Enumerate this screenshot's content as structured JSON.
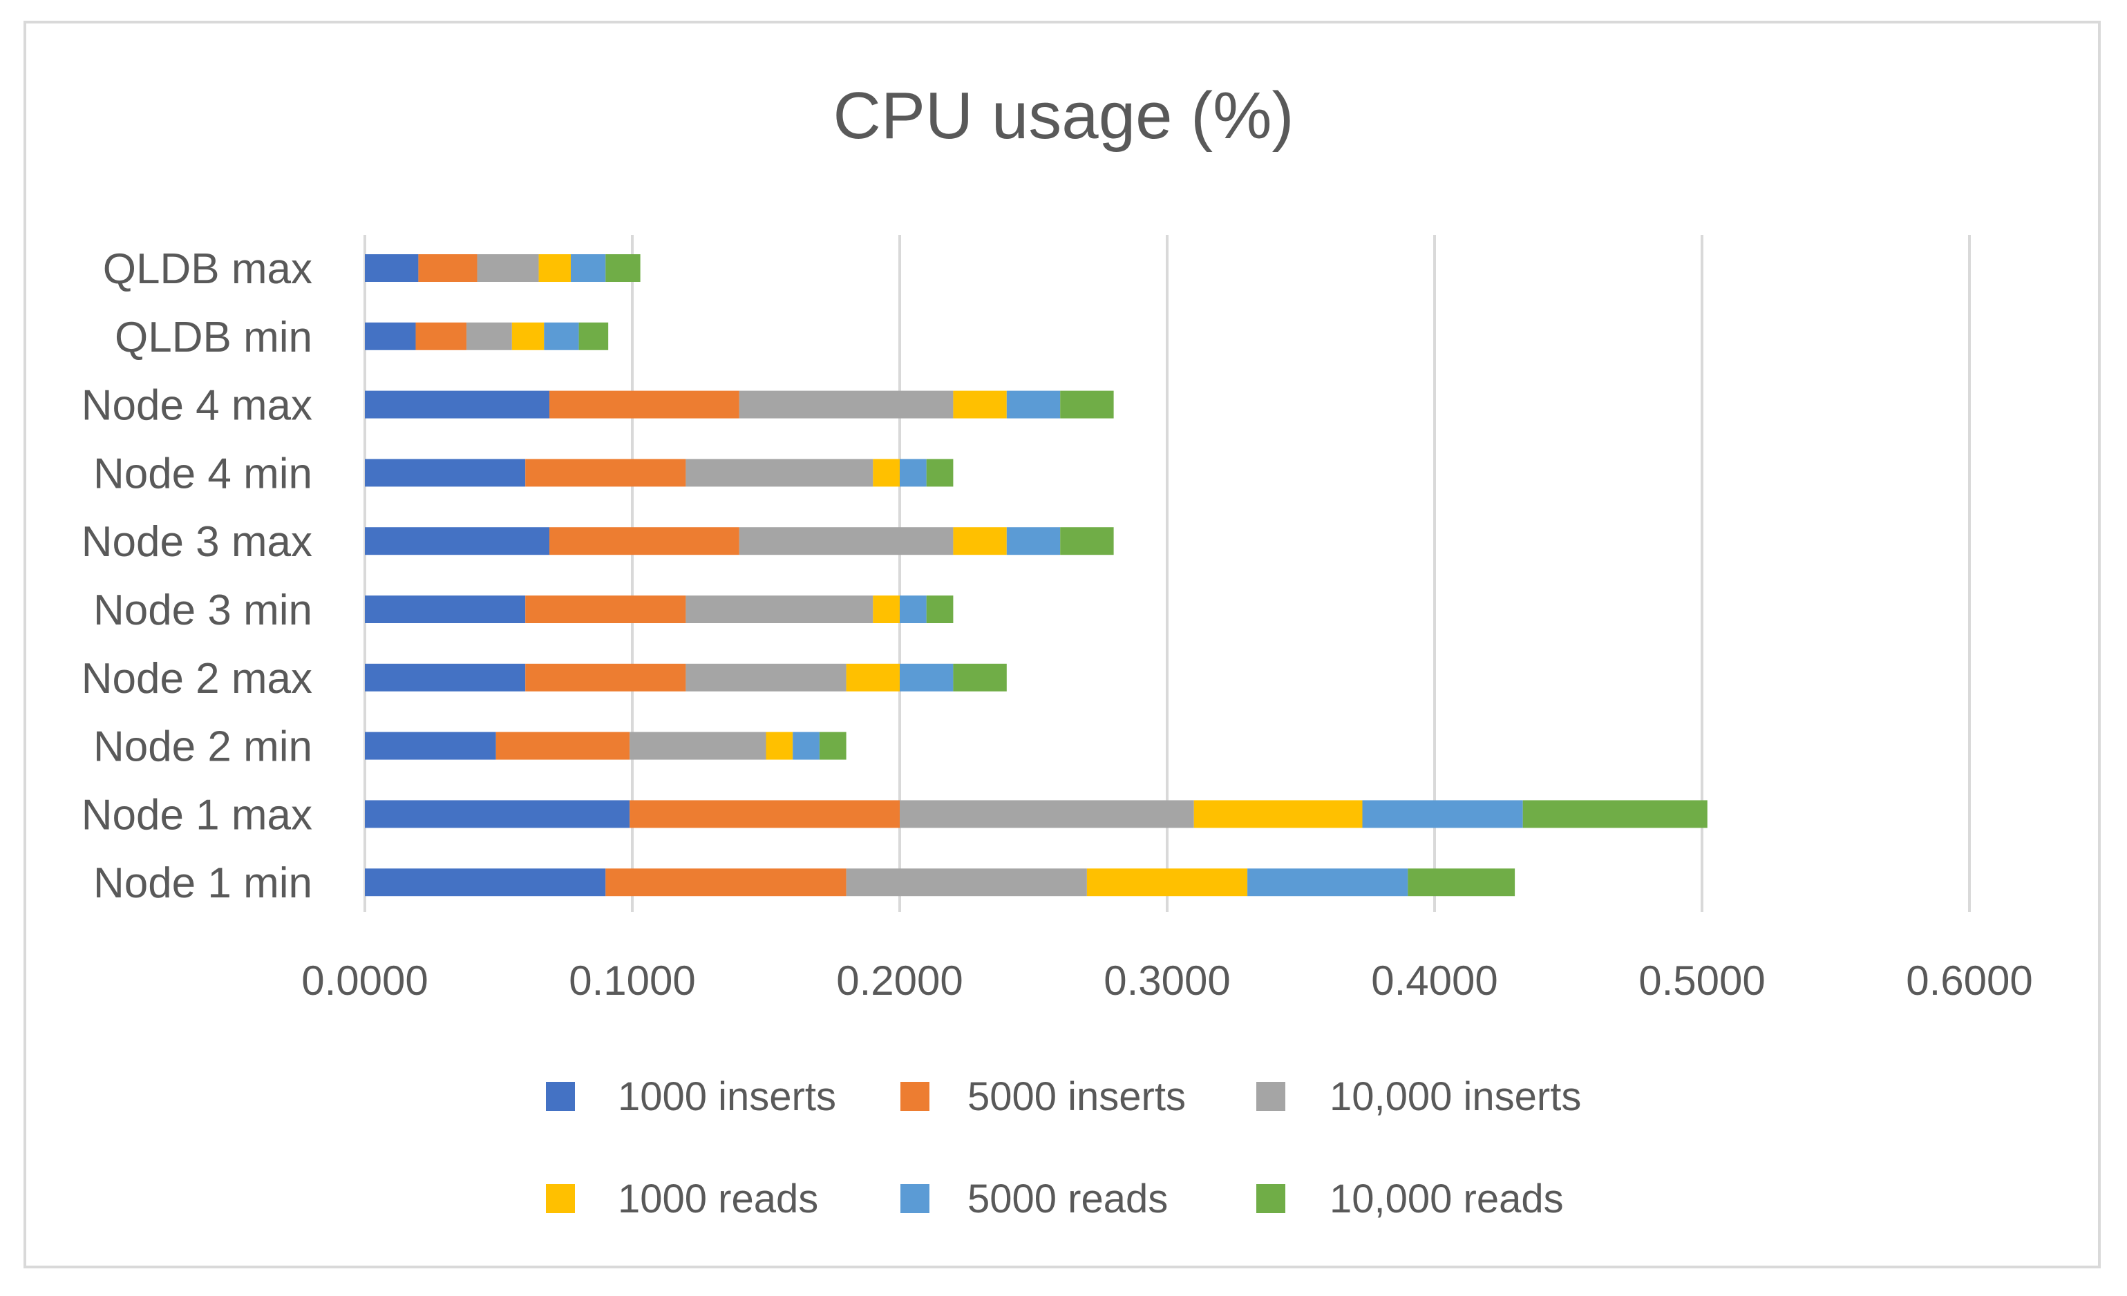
{
  "chart_data": {
    "type": "bar",
    "orientation": "horizontal",
    "stacked": true,
    "title": "CPU usage (%)",
    "xlabel": "",
    "ylabel": "",
    "xlim": [
      0,
      0.6
    ],
    "x_ticks": [
      "0.0000",
      "0.1000",
      "0.2000",
      "0.3000",
      "0.4000",
      "0.5000",
      "0.6000"
    ],
    "grid": "vertical",
    "legend_position": "bottom",
    "categories": [
      "QLDB max",
      "QLDB min",
      "Node 4 max",
      "Node 4 min",
      "Node 3 max",
      "Node 3 min",
      "Node 2 max",
      "Node 2 min",
      "Node 1 max",
      "Node 1 min"
    ],
    "series": [
      {
        "name": "1000 inserts",
        "color": "#4472c4",
        "values": [
          0.02,
          0.019,
          0.069,
          0.06,
          0.069,
          0.06,
          0.06,
          0.049,
          0.099,
          0.09
        ]
      },
      {
        "name": "5000 inserts",
        "color": "#ed7d31",
        "values": [
          0.022,
          0.019,
          0.071,
          0.06,
          0.071,
          0.06,
          0.06,
          0.05,
          0.101,
          0.09
        ]
      },
      {
        "name": "10,000 inserts",
        "color": "#a5a5a5",
        "values": [
          0.023,
          0.017,
          0.08,
          0.07,
          0.08,
          0.07,
          0.06,
          0.051,
          0.11,
          0.09
        ]
      },
      {
        "name": "1000 reads",
        "color": "#ffc000",
        "values": [
          0.012,
          0.012,
          0.02,
          0.01,
          0.02,
          0.01,
          0.02,
          0.01,
          0.063,
          0.06
        ]
      },
      {
        "name": "5000 reads",
        "color": "#5b9bd5",
        "values": [
          0.013,
          0.013,
          0.02,
          0.01,
          0.02,
          0.01,
          0.02,
          0.01,
          0.06,
          0.06
        ]
      },
      {
        "name": "10,000 reads",
        "color": "#70ad47",
        "values": [
          0.013,
          0.011,
          0.02,
          0.01,
          0.02,
          0.01,
          0.02,
          0.01,
          0.069,
          0.04
        ]
      }
    ]
  }
}
